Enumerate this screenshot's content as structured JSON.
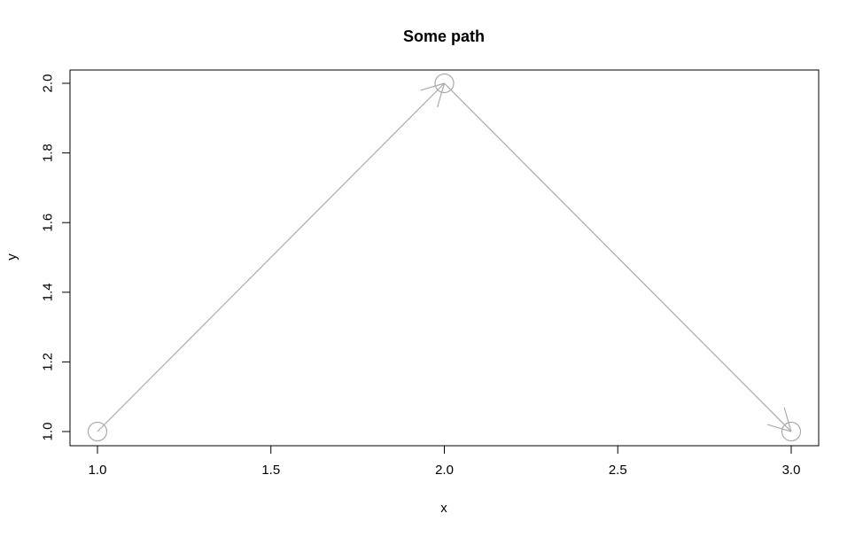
{
  "chart_data": {
    "type": "line",
    "title": "Some path",
    "xlabel": "x",
    "ylabel": "y",
    "x": [
      1,
      2,
      3
    ],
    "y": [
      1,
      2,
      1
    ],
    "xlim": [
      1,
      3
    ],
    "ylim": [
      1,
      2
    ],
    "xticks": [
      1.0,
      1.5,
      2.0,
      2.5,
      3.0
    ],
    "xtick_labels": [
      "1.0",
      "1.5",
      "2.0",
      "2.5",
      "3.0"
    ],
    "yticks": [
      1.0,
      1.2,
      1.4,
      1.6,
      1.8,
      2.0
    ],
    "ytick_labels": [
      "1.0",
      "1.2",
      "1.4",
      "1.6",
      "1.8",
      "2.0"
    ],
    "point_marker": "open-circle",
    "arrows": true,
    "grid": false,
    "colors": {
      "path": "#aaaaaa",
      "frame": "#000000"
    }
  }
}
